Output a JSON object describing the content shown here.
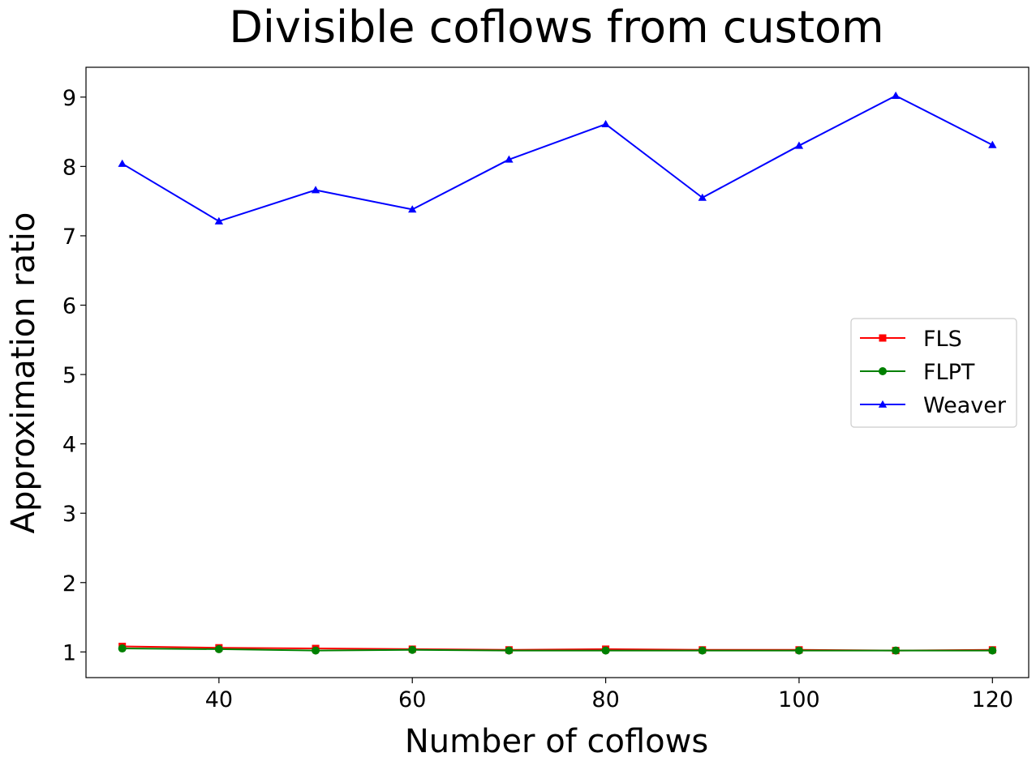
{
  "chart_data": {
    "type": "line",
    "title": "Divisible coflows from custom",
    "xlabel": "Number of coflows",
    "ylabel": "Approximation ratio",
    "x": [
      30,
      40,
      50,
      60,
      70,
      80,
      90,
      100,
      110,
      120
    ],
    "xlim": [
      26.25,
      123.75
    ],
    "ylim": [
      0.63,
      9.43
    ],
    "xticks": [
      40,
      60,
      80,
      100,
      120
    ],
    "yticks": [
      1,
      2,
      3,
      4,
      5,
      6,
      7,
      8,
      9
    ],
    "grid": false,
    "legend_position": "center-right",
    "series": [
      {
        "name": "FLS",
        "color": "#ff0000",
        "marker": "square",
        "values": [
          1.08,
          1.06,
          1.05,
          1.04,
          1.03,
          1.04,
          1.03,
          1.03,
          1.02,
          1.03
        ]
      },
      {
        "name": "FLPT",
        "color": "#008000",
        "marker": "circle",
        "values": [
          1.05,
          1.04,
          1.02,
          1.03,
          1.02,
          1.02,
          1.02,
          1.02,
          1.02,
          1.02
        ]
      },
      {
        "name": "Weaver",
        "color": "#0000ff",
        "marker": "triangle",
        "values": [
          8.04,
          7.21,
          7.66,
          7.38,
          8.1,
          8.61,
          7.55,
          8.3,
          9.02,
          8.31
        ]
      }
    ]
  }
}
